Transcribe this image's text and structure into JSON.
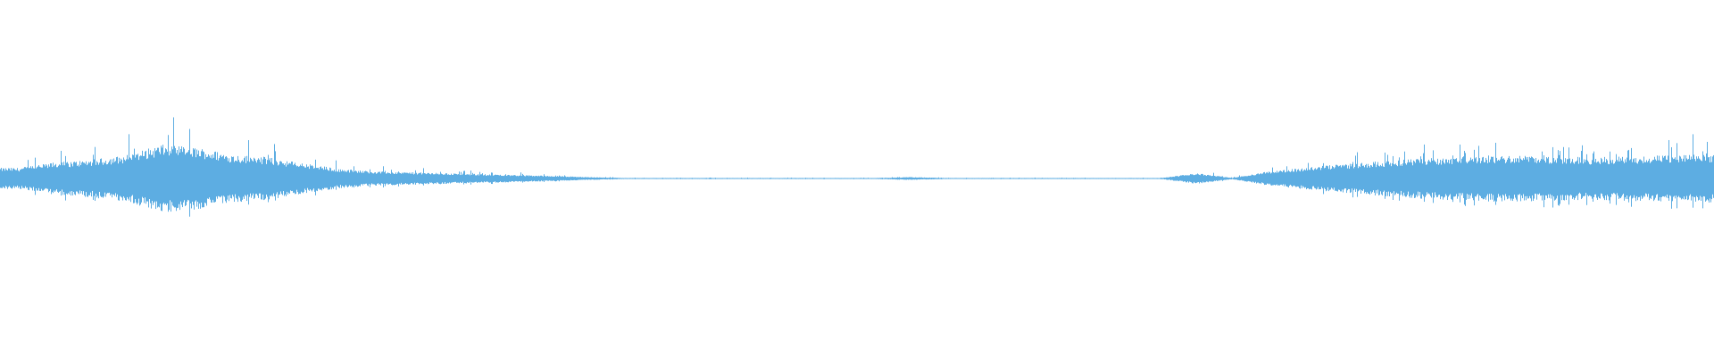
{
  "chart_data": {
    "type": "area",
    "title": "",
    "xlabel": "",
    "ylabel": "",
    "ylim": [
      -1,
      1
    ],
    "grid": false,
    "legend": "none",
    "style": "audio-waveform (mirrored amplitude)",
    "color": "#5dade2",
    "background": "#ffffff",
    "envelope_amplitude": [
      0.06,
      0.09,
      0.105,
      0.13,
      0.19,
      0.175,
      0.135,
      0.12,
      0.085,
      0.055,
      0.04,
      0.035,
      0.03,
      0.025,
      0.02,
      0.015,
      0.008,
      0.003,
      0.003,
      0.003,
      0.003,
      0.003,
      0.003,
      0.003,
      0.003,
      0.008,
      0.003,
      0.003,
      0.003,
      0.003,
      0.003,
      0.003,
      0.003,
      0.03,
      0.004,
      0.04,
      0.06,
      0.08,
      0.095,
      0.11,
      0.12,
      0.13,
      0.13,
      0.125,
      0.12,
      0.125,
      0.13,
      0.135
    ]
  }
}
